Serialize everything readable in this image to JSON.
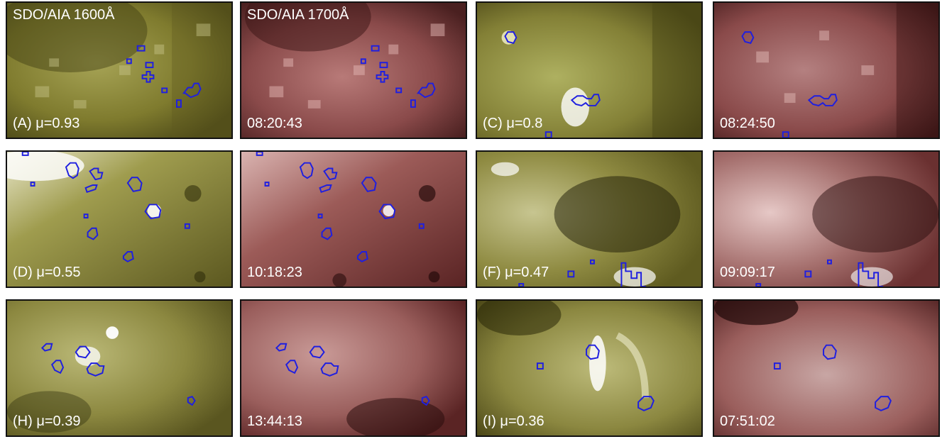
{
  "figure": {
    "colors": {
      "aia1600": "#8b8a2e",
      "aia1700": "#8a4a4a",
      "contour": "#1f1fe0"
    },
    "panels": [
      {
        "row": 0,
        "col": 0,
        "channel": "aia1600",
        "top_label": "SDO/AIA 1600Å",
        "label": "(A) μ=0.93"
      },
      {
        "row": 0,
        "col": 1,
        "channel": "aia1700",
        "top_label": "SDO/AIA 1700Å",
        "label": "08:20:43"
      },
      {
        "row": 0,
        "col": 2,
        "channel": "aia1600",
        "top_label": "",
        "label": "(C) μ=0.8"
      },
      {
        "row": 0,
        "col": 3,
        "channel": "aia1700",
        "top_label": "",
        "label": "08:24:50"
      },
      {
        "row": 1,
        "col": 0,
        "channel": "aia1600",
        "top_label": "",
        "label": "(D) μ=0.55"
      },
      {
        "row": 1,
        "col": 1,
        "channel": "aia1700",
        "top_label": "",
        "label": "10:18:23"
      },
      {
        "row": 1,
        "col": 2,
        "channel": "aia1600",
        "top_label": "",
        "label": "(F) μ=0.47"
      },
      {
        "row": 1,
        "col": 3,
        "channel": "aia1700",
        "top_label": "",
        "label": "09:09:17"
      },
      {
        "row": 2,
        "col": 0,
        "channel": "aia1600",
        "top_label": "",
        "label": "(H) μ=0.39"
      },
      {
        "row": 2,
        "col": 1,
        "channel": "aia1700",
        "top_label": "",
        "label": "13:44:13"
      },
      {
        "row": 2,
        "col": 2,
        "channel": "aia1600",
        "top_label": "",
        "label": "(I) μ=0.36"
      },
      {
        "row": 2,
        "col": 3,
        "channel": "aia1700",
        "top_label": "",
        "label": "07:51:02"
      }
    ]
  }
}
